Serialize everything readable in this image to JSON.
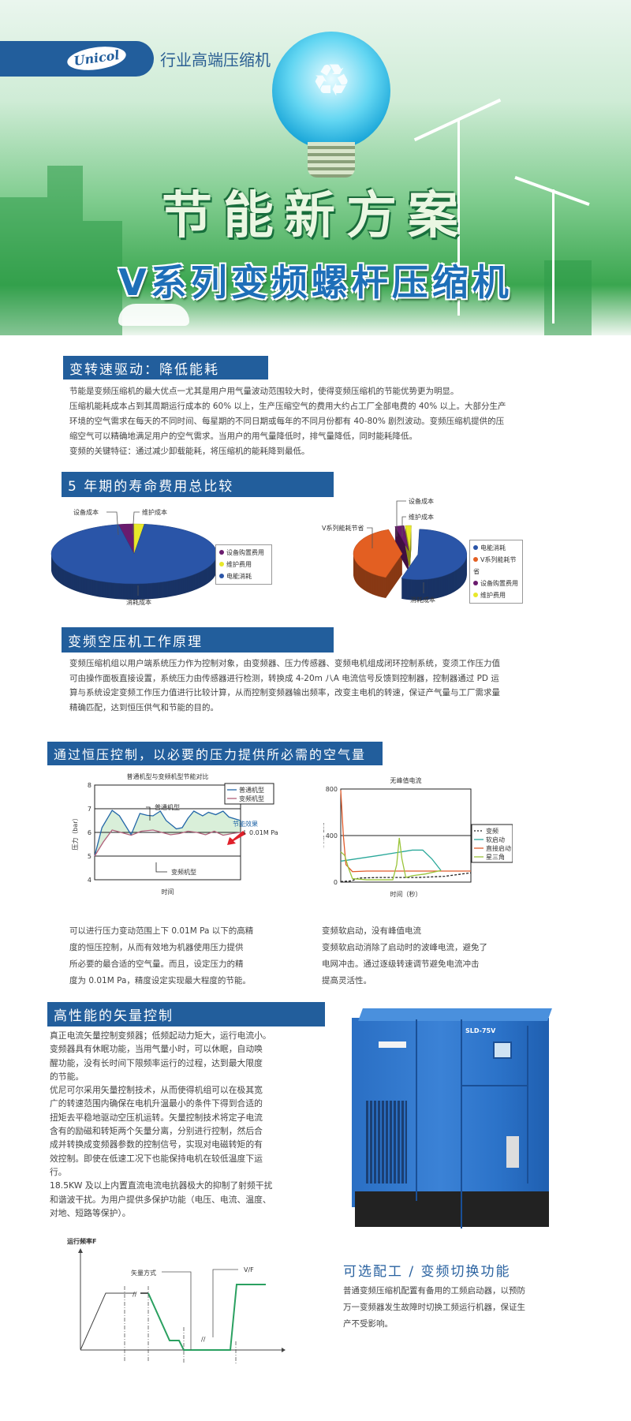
{
  "banner": {
    "logo": "Unicol",
    "tagline": "行业高端压缩机",
    "title": "节能新方案",
    "subtitle": "V系列变频螺杆压缩机"
  },
  "section1": {
    "title": "变转速驱动：降低能耗",
    "lines": [
      "节能是变频压缩机的最大优点一尤其是用户用气量波动范围较大时，使得变频压缩机的节能优势更为明显。",
      "压缩机能耗成本占到其周期运行成本的 60% 以上，生产压缩空气的费用大约占工厂全部电费的 40% 以上。大部分生产",
      "环境的空气需求在每天的不同时间、每星期的不同日期或每年的不同月份都有 40-80% 剧烈波动。变频压缩机提供的压",
      "缩空气可以精确地满足用户的空气需求。当用户的用气量降低时，排气量降低，同时能耗降低。",
      "变频的关键特征：通过减少卸载能耗，将压缩机的能耗降到最低。"
    ]
  },
  "section2": {
    "title": "5 年期的寿命费用总比较"
  },
  "section3": {
    "title": "变频空压机工作原理",
    "lines": [
      "变频压缩机组以用户端系统压力作为控制对象，由变频器、压力传感器、变频电机组成闭环控制系统，变须工作压力值",
      "可由操作面板直接设置，系统压力由传感器进行检测，转换成 4-20m 八A 电流信号反馈到控制器，控制器通过 PD 运",
      "算与系统设定变频工作压力值进行比较计算，从而控制变频器输出频率，改变主电机的转速，保证产气量与工厂需求量",
      "精确匹配，达到恒压供气和节能的目的。"
    ]
  },
  "section4": {
    "title": "通过恒压控制，以必要的压力提供所必需的空气量",
    "left_text": [
      "可以进行压力变动范围上下 0.01M Pa 以下的高精",
      "度的恒压控制，从而有效地为机器使用压力提供",
      "所必要的最合适的空气量。而且，设定压力的精",
      "度为 0.01M Pa，精度设定实现最大程度的节能。"
    ],
    "right_text": [
      "变频软启动，没有峰值电流",
      "变频软启动消除了启动时的波峰电流，避免了",
      "电网冲击。通过逐级转速调节避免电流冲击",
      "提高灵活性。"
    ]
  },
  "section5": {
    "title": "高性能的矢量控制",
    "lines": [
      "真正电流矢量控制变频器；低频起动力矩大，运行电流小。",
      "变频器具有休眠功能，当用气量小时，可以休眠，自动唤",
      "醒功能，没有长时间下限频率运行的过程，达到最大限度",
      "的节能。",
      "优尼可尔采用矢量控制技术，从而使得机组可以在极其宽",
      "广的转速范围内确保在电机升温最小的条件下得到合适的",
      "扭矩去平稳地驱动空压机运转。矢量控制技术将定子电流",
      "含有的励磁和转矩两个矢量分离，分别进行控制，然后合",
      "成并转换成变频器参数的控制信号，实现对电磁转矩的有",
      "效控制。即使在低速工况下也能保持电机在较低温度下运",
      "行。",
      "18.5KW 及以上内置直流电流电抗器极大的抑制了射频干扰",
      "和谐波干扰。为用户提供多保护功能（电压、电流、温度、",
      "对地、短路等保护）。"
    ],
    "product_model": "SLD-75V",
    "vector_chart": {
      "ylabel": "运行频率F",
      "vector_label": "矢量方式",
      "vf_label": "V/F",
      "break_mark": "//"
    }
  },
  "section6": {
    "title": "可选配工 / 变频切换功能",
    "lines": [
      "普通变频压缩机配置有备用的工频启动器，以预防",
      "万一变频器发生故障时切换工频运行机器，保证生",
      "产不受影响。"
    ]
  },
  "chart_data": [
    {
      "type": "pie",
      "title": "",
      "slices": [
        {
          "label": "设备购置费用",
          "value": 3,
          "color": "#6a1b6e"
        },
        {
          "label": "维护费用",
          "value": 2,
          "color": "#e8e82a"
        },
        {
          "label": "电能消耗",
          "value": 95,
          "color": "#2a55a8"
        }
      ],
      "annotations": {
        "equipment": "设备成本",
        "maintenance": "维护成本",
        "consumption": "消耗成本"
      },
      "legend": "right"
    },
    {
      "type": "pie",
      "title": "",
      "slices": [
        {
          "label": "电能消耗",
          "value": 55,
          "color": "#2a55a8"
        },
        {
          "label": "V系列能耗节省",
          "value": 40,
          "color": "#e35f22"
        },
        {
          "label": "设备购置费用",
          "value": 3,
          "color": "#6a1b6e"
        },
        {
          "label": "维护费用",
          "value": 2,
          "color": "#e8e82a"
        }
      ],
      "annotations": {
        "saving": "V系列能耗节省",
        "equipment": "设备成本",
        "maintenance": "维护成本",
        "consumption": "消耗成本"
      },
      "legend": "right"
    },
    {
      "type": "line",
      "title": "普通机型与变频机型节能对比",
      "xlabel": "时间",
      "ylabel": "压力（bar）",
      "ylim": [
        4,
        8
      ],
      "yticks": [
        4,
        5,
        6,
        7,
        8
      ],
      "xlim": [
        0,
        10
      ],
      "legend": "top-right",
      "series": [
        {
          "name": "普通机型",
          "color": "#2266a8",
          "x": [
            0,
            0.5,
            1.2,
            1.7,
            2.5,
            3.1,
            3.6,
            4.0,
            4.5,
            4.9,
            5.6,
            6.0,
            6.4,
            6.8,
            7.4,
            7.8,
            8.3,
            8.8,
            9.2,
            10
          ],
          "y": [
            5,
            6.2,
            6.93,
            6.7,
            5.9,
            6.8,
            6.72,
            6.7,
            6.9,
            6.5,
            6.15,
            6.2,
            6.6,
            6.9,
            6.7,
            6.85,
            6.75,
            6.9,
            6.65,
            6.5
          ]
        },
        {
          "name": "变频机型",
          "color": "#b0607a",
          "x": [
            0,
            0.6,
            1.2,
            1.8,
            2.5,
            3.2,
            4.0,
            4.6,
            5.2,
            5.8,
            6.4,
            7.0,
            7.6,
            8.2,
            8.8,
            9.4,
            10
          ],
          "y": [
            5,
            5.6,
            6.1,
            6.0,
            5.88,
            6.05,
            6.1,
            6.0,
            5.9,
            5.95,
            6.05,
            6.0,
            5.9,
            6.05,
            5.88,
            5.95,
            6.0
          ]
        }
      ],
      "annotations": {
        "normal": "普通机型",
        "variable": "变频机型",
        "effect": "节能效果",
        "precision": "0.01M Pa"
      }
    },
    {
      "type": "line",
      "title": "无峰值电流",
      "xlabel": "时间（秒）",
      "ylabel": "满载电流",
      "ylim": [
        0,
        800
      ],
      "yticks": [
        0,
        400,
        800
      ],
      "xlim": [
        0,
        100
      ],
      "legend": "right",
      "series": [
        {
          "name": "变频",
          "color": "#222222",
          "dash": true,
          "x": [
            0,
            8,
            14,
            30,
            60,
            80,
            100
          ],
          "y": [
            5,
            10,
            35,
            40,
            40,
            50,
            80
          ]
        },
        {
          "name": "软启动",
          "color": "#2aa89a",
          "x": [
            0,
            30,
            55,
            63,
            70,
            77
          ],
          "y": [
            180,
            230,
            275,
            275,
            200,
            100
          ]
        },
        {
          "name": "直接启动",
          "color": "#e05a2a",
          "x": [
            0,
            2,
            4,
            9,
            20,
            100
          ],
          "y": [
            790,
            400,
            150,
            90,
            95,
            95
          ]
        },
        {
          "name": "星三角",
          "color": "#9ac43a",
          "x": [
            0,
            3,
            6,
            9,
            20,
            40,
            43,
            45,
            47,
            50,
            55,
            65,
            77
          ],
          "y": [
            260,
            230,
            120,
            30,
            20,
            20,
            150,
            380,
            200,
            40,
            55,
            70,
            100
          ]
        }
      ]
    }
  ]
}
